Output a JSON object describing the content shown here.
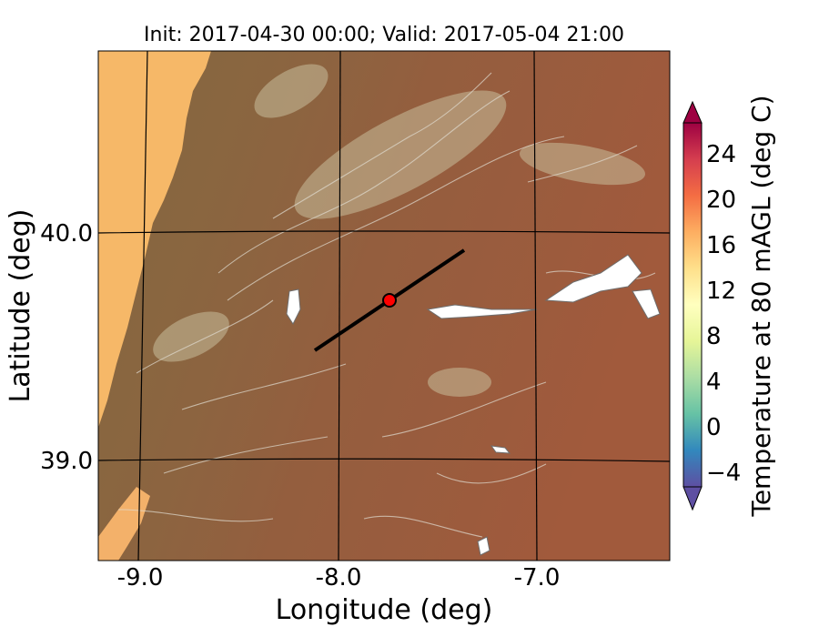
{
  "title": "Init: 2017-04-30 00:00; Valid: 2017-05-04 21:00",
  "map": {
    "xlabel": "Longitude (deg)",
    "ylabel": "Latitude (deg)",
    "x_ticks": [
      "-9.0",
      "-8.0",
      "-7.0"
    ],
    "y_ticks": [
      "40.0",
      "39.0"
    ],
    "field": "terrain-shaded temperature contours",
    "marker": {
      "type": "point",
      "color": "#ff0000"
    },
    "transect": {
      "type": "line",
      "color": "#000000"
    }
  },
  "colorbar": {
    "label": "Temperature at 80 mAGL (deg C)",
    "ticks": [
      "24",
      "20",
      "16",
      "12",
      "8",
      "4",
      "0",
      "−4"
    ],
    "range": [
      -6,
      28
    ],
    "colormap": "Spectral_r",
    "colors": [
      "#5e4fa2",
      "#3288bd",
      "#66c2a5",
      "#abdda4",
      "#e6f598",
      "#ffffbf",
      "#fee08b",
      "#fdae61",
      "#f46d43",
      "#d53e4f",
      "#9e0142"
    ]
  }
}
